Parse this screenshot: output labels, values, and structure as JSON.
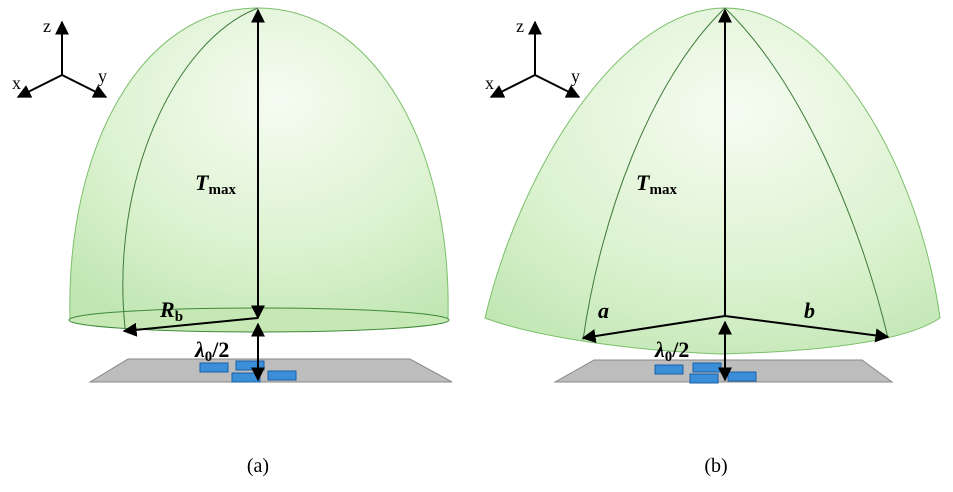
{
  "panels": [
    {
      "axes": {
        "z": "z",
        "x": "x",
        "y": "y"
      },
      "height": {
        "symbol": "T",
        "sub": "max"
      },
      "radius": {
        "symbol": "R",
        "sub": "b"
      },
      "gap": {
        "symbol": "λ",
        "sub": "0",
        "rest": "/2"
      },
      "caption": "(a)"
    },
    {
      "axes": {
        "z": "z",
        "x": "x",
        "y": "y"
      },
      "height": {
        "symbol": "T",
        "sub": "max"
      },
      "semi_axis_a": "a",
      "semi_axis_b": "b",
      "gap": {
        "symbol": "λ",
        "sub": "0",
        "rest": "/2"
      },
      "caption": "(b)"
    }
  ]
}
